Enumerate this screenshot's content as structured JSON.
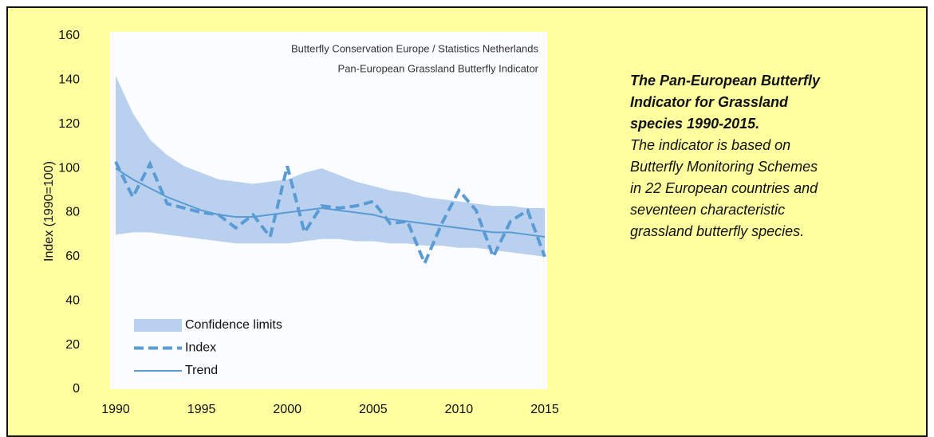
{
  "chart_data": {
    "type": "line",
    "source": "Butterfly Conservation Europe / Statistics Netherlands",
    "title": "Pan-European Grassland Butterfly Indicator",
    "y_label": "Index (1990=100)",
    "x": [
      1990,
      1991,
      1992,
      1993,
      1994,
      1995,
      1996,
      1997,
      1998,
      1999,
      2000,
      2001,
      2002,
      2003,
      2004,
      2005,
      2006,
      2007,
      2008,
      2009,
      2010,
      2011,
      2012,
      2013,
      2014,
      2015
    ],
    "series": [
      {
        "name": "Confidence limits",
        "color": "#b9d1ee",
        "upper": [
          142,
          125,
          113,
          106,
          101,
          98,
          95,
          94,
          93,
          94,
          95,
          98,
          100,
          97,
          94,
          92,
          90,
          89,
          87,
          86,
          85,
          84,
          83,
          83,
          82,
          82
        ],
        "lower": [
          70,
          71,
          71,
          70,
          69,
          68,
          67,
          66,
          66,
          66,
          66,
          67,
          68,
          68,
          67,
          67,
          66,
          66,
          65,
          65,
          64,
          64,
          63,
          62,
          61,
          60
        ]
      },
      {
        "name": "Index",
        "color": "#5b9bd5",
        "style": "dashed",
        "values": [
          103,
          87,
          102,
          84,
          82,
          80,
          79,
          73,
          79,
          69,
          101,
          71,
          83,
          82,
          83,
          85,
          75,
          76,
          57,
          75,
          90,
          81,
          60,
          76,
          81,
          60
        ]
      },
      {
        "name": "Trend",
        "color": "#5b9bd5",
        "style": "solid",
        "values": [
          100,
          95,
          91,
          87,
          84,
          81,
          79,
          78,
          78,
          79,
          80,
          81,
          82,
          81,
          80,
          79,
          77,
          76,
          75,
          74,
          73,
          72,
          71,
          71,
          70,
          69
        ]
      }
    ],
    "xlim": [
      1990,
      2015
    ],
    "xticks": [
      1990,
      1995,
      2000,
      2005,
      2010,
      2015
    ],
    "ylim": [
      0,
      160
    ],
    "yticks": [
      0,
      20,
      40,
      60,
      80,
      100,
      120,
      140,
      160
    ]
  },
  "caption": {
    "title_lines": [
      "The Pan-European Butterfly",
      "Indicator for Grassland",
      "species 1990-2015."
    ],
    "body_lines": [
      "The indicator is based on",
      "Butterfly Monitoring Schemes",
      "in 22 European countries and",
      "seventeen characteristic",
      "grassland butterfly species."
    ]
  }
}
